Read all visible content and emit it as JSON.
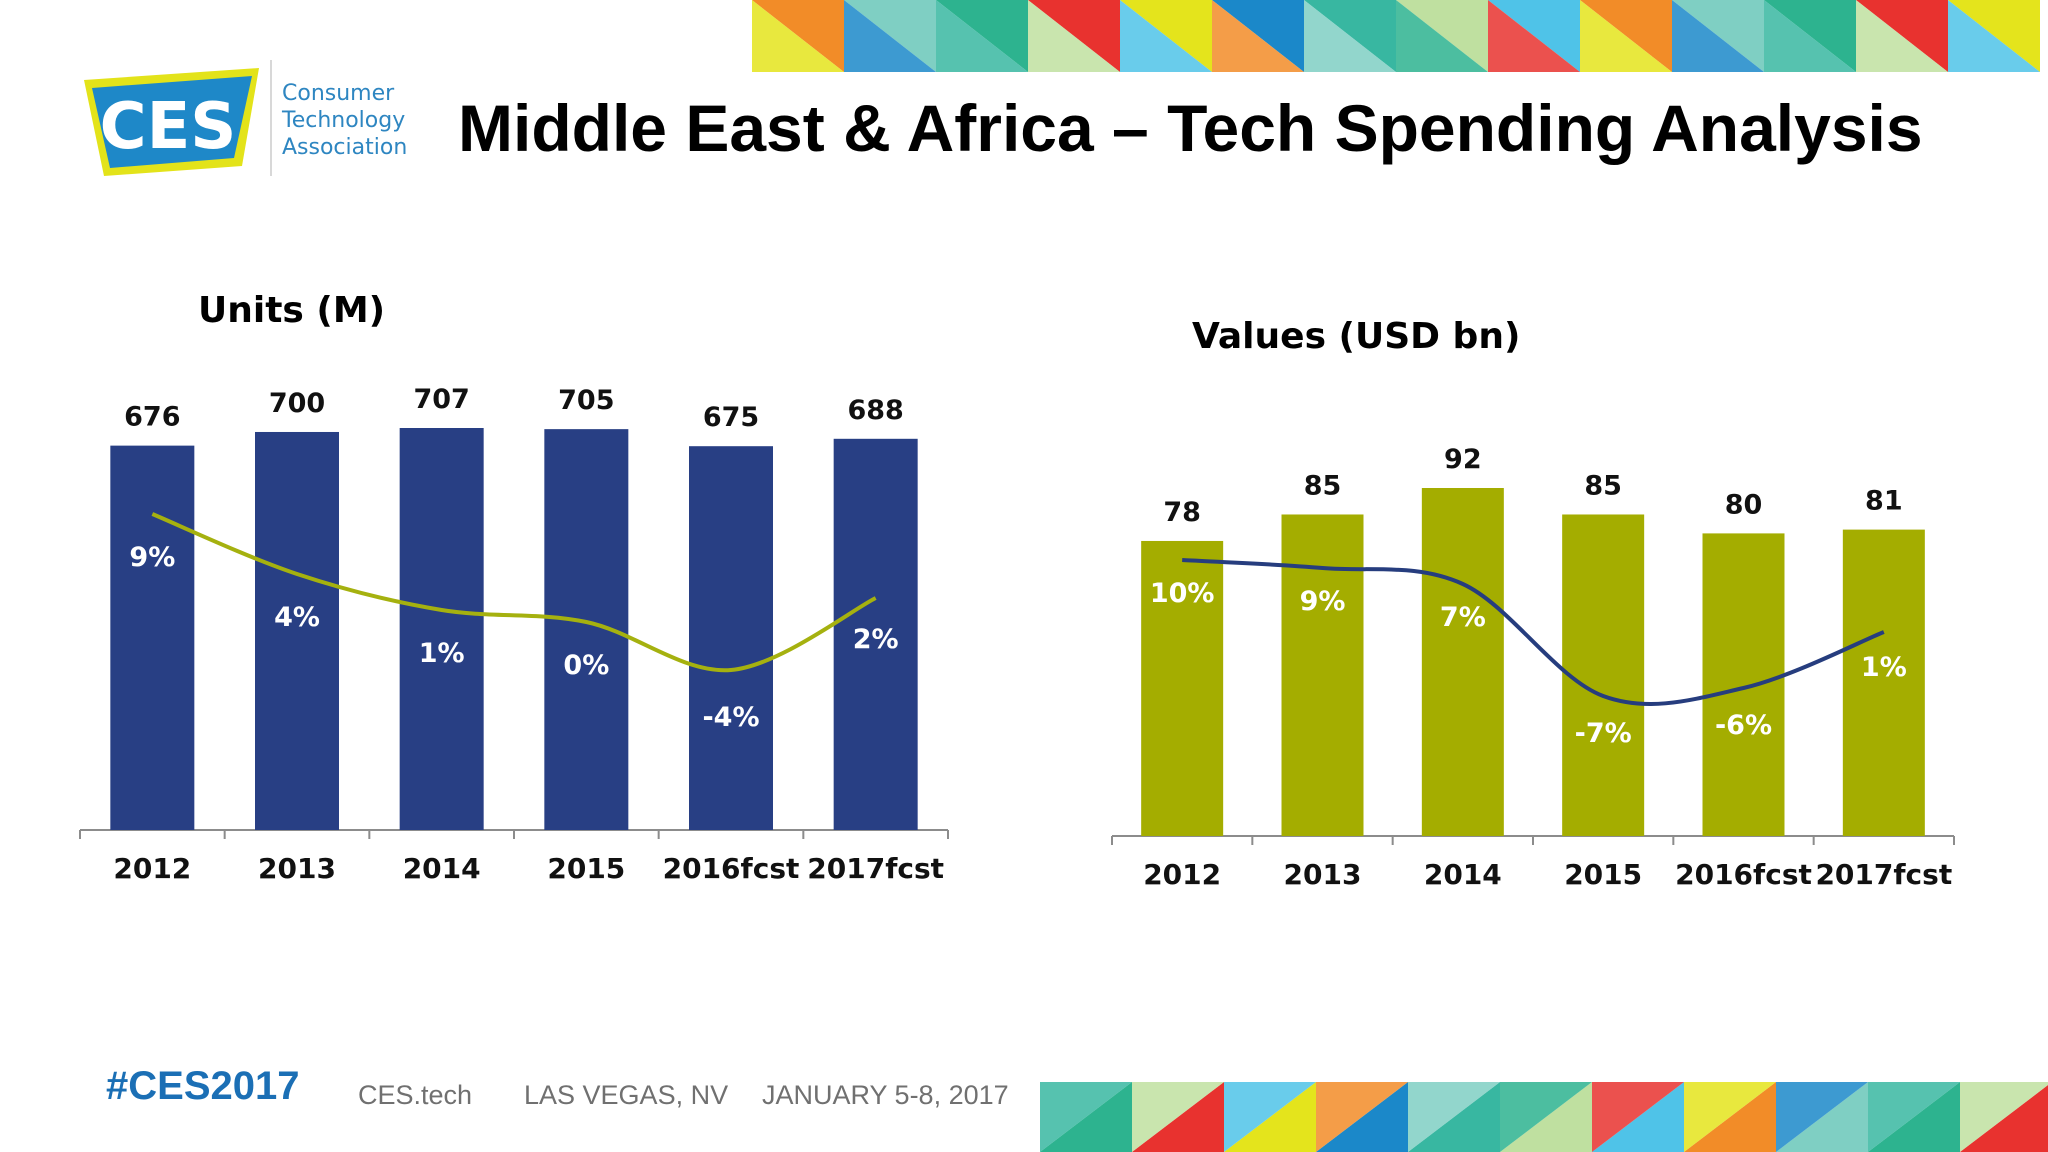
{
  "header": {
    "title": "Middle East & Africa – Tech Spending Analysis",
    "logo": {
      "mark": "CES",
      "org_lines": [
        "Consumer",
        "Technology",
        "Association"
      ]
    }
  },
  "footer": {
    "hashtag": "#CES2017",
    "site": "CES.tech",
    "location": "LAS VEGAS, NV",
    "dates": "JANUARY 5-8, 2017"
  },
  "colors": {
    "units_bar": "#283f84",
    "units_line": "#a5b10f",
    "values_bar": "#a4ad00",
    "values_line": "#263d7e",
    "axis": "#8c8c8c",
    "logo_blue": "#1e88c8",
    "logo_yellow": "#e3e31a"
  },
  "chart_data": [
    {
      "type": "bar",
      "title": "Units (M)",
      "categories": [
        "2012",
        "2013",
        "2014",
        "2015",
        "2016fcst",
        "2017fcst"
      ],
      "values": [
        676,
        700,
        707,
        705,
        675,
        688
      ],
      "value_labels": [
        "676",
        "700",
        "707",
        "705",
        "675",
        "688"
      ],
      "growth_line": {
        "values": [
          9,
          4,
          1,
          0,
          -4,
          2
        ],
        "labels": [
          "9%",
          "4%",
          "1%",
          "0%",
          "-4%",
          "2%"
        ]
      },
      "ylim": [
        0,
        750
      ],
      "grid": false,
      "legend": "none"
    },
    {
      "type": "bar",
      "title": "Values (USD bn)",
      "categories": [
        "2012",
        "2013",
        "2014",
        "2015",
        "2016fcst",
        "2017fcst"
      ],
      "values": [
        78,
        85,
        92,
        85,
        80,
        81
      ],
      "value_labels": [
        "78",
        "85",
        "92",
        "85",
        "80",
        "81"
      ],
      "growth_line": {
        "values": [
          10,
          9,
          7,
          -7,
          -6,
          1
        ],
        "labels": [
          "10%",
          "9%",
          "7%",
          "-7%",
          "-6%",
          "1%"
        ]
      },
      "ylim": [
        0,
        100
      ],
      "grid": false,
      "legend": "none"
    }
  ]
}
